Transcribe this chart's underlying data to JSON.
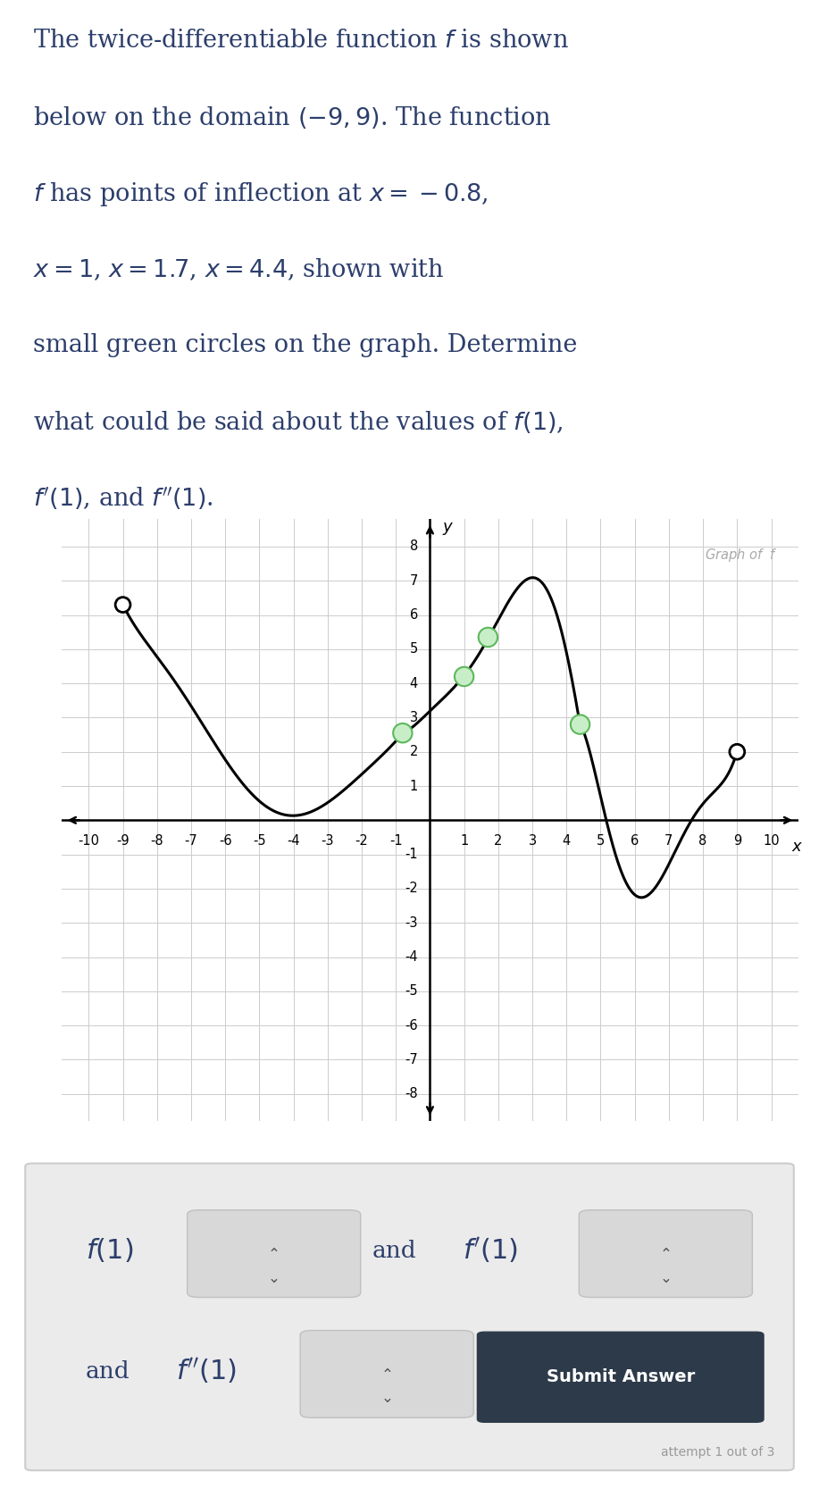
{
  "inflection_points": [
    [
      -0.8,
      2.55
    ],
    [
      1.0,
      4.2
    ],
    [
      1.7,
      5.35
    ],
    [
      4.4,
      2.8
    ]
  ],
  "open_circles": [
    [
      -9,
      6.3
    ],
    [
      9,
      2.0
    ]
  ],
  "graph_label": "Graph of  $f$",
  "xlim": [
    -10.8,
    10.8
  ],
  "ylim": [
    -8.8,
    8.8
  ],
  "curve_color": "#000000",
  "inflection_face_color": "#c8eec8",
  "inflection_edge_color": "#5db85d",
  "grid_color": "#cccccc",
  "background_color": "#ffffff",
  "panel_bg_color": "#ebebeb",
  "panel_border_color": "#cccccc",
  "submit_bg_color": "#2d3a4a",
  "text_color": "#2c3e6b",
  "axis_label_color": "#888888",
  "title_fontsize": 19.5,
  "tick_fontsize": 10.5
}
